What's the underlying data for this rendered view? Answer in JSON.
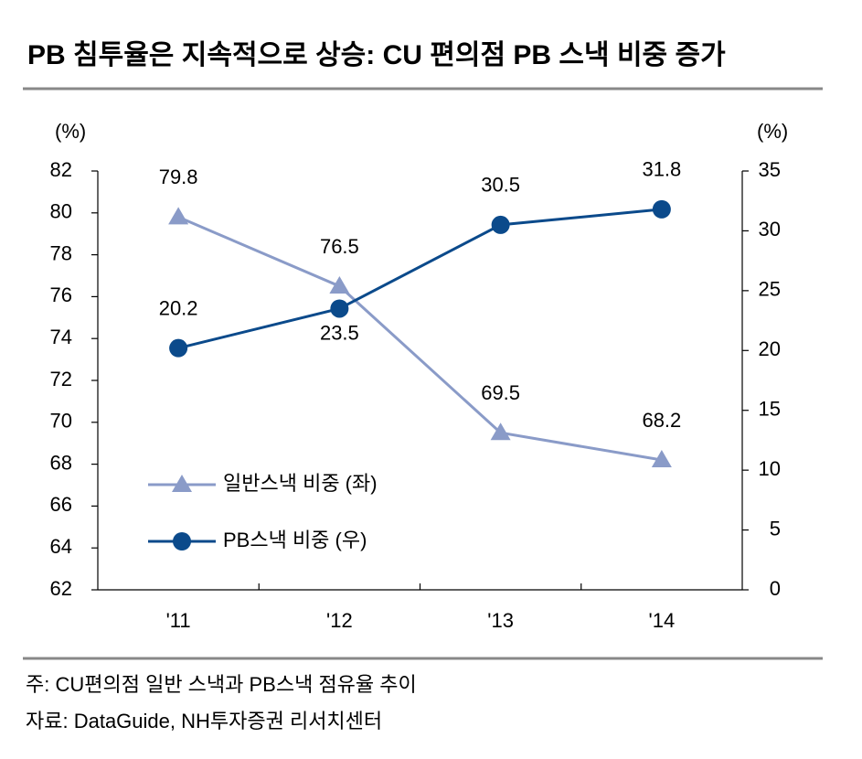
{
  "chart_data": {
    "type": "line",
    "title": "PB 침투율은 지속적으로 상승: CU 편의점 PB 스낵 비중 증가",
    "y_unit": "(%)",
    "y2_unit": "(%)",
    "categories": [
      "'11",
      "'12",
      "'13",
      "'14"
    ],
    "series": [
      {
        "name": "일반스낵 비중 (좌)",
        "color": "#8a9bc8",
        "marker": "triangle",
        "values": [
          79.8,
          76.5,
          69.5,
          68.2
        ]
      },
      {
        "name": "PB스낵 비중 (우)",
        "color": "#0b4a8b",
        "marker": "circle",
        "axis": "y2",
        "values": [
          20.2,
          23.5,
          30.5,
          31.8
        ]
      }
    ],
    "ylim": [
      62,
      82
    ],
    "yticks": [
      62,
      64,
      66,
      68,
      70,
      72,
      74,
      76,
      78,
      80,
      82
    ],
    "y2lim": [
      0,
      35
    ],
    "y2ticks": [
      0,
      5,
      10,
      15,
      20,
      25,
      30,
      35
    ],
    "note": "주: CU편의점 일반 스낵과 PB스낵 점유율 추이",
    "source": "자료: DataGuide, NH투자증권 리서치센터"
  }
}
